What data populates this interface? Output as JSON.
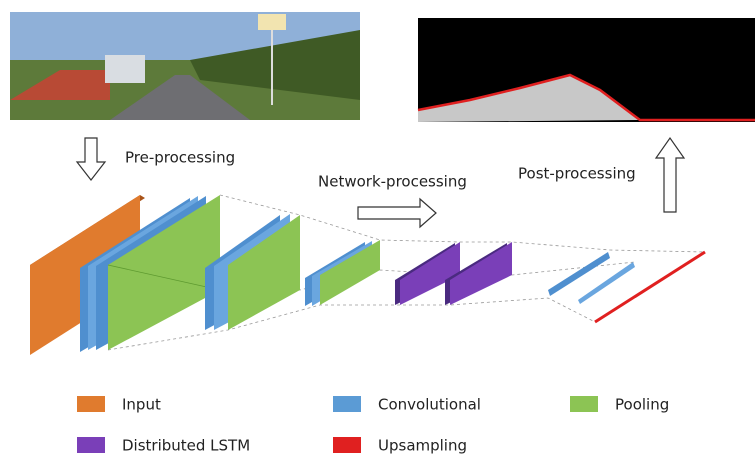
{
  "stages": {
    "pre": "Pre-processing",
    "network": "Network-processing",
    "post": "Post-processing"
  },
  "legend": [
    {
      "label": "Input"
    },
    {
      "label": "Convolutional"
    },
    {
      "label": "Pooling"
    },
    {
      "label": "Distributed LSTM"
    },
    {
      "label": "Upsampling"
    }
  ]
}
